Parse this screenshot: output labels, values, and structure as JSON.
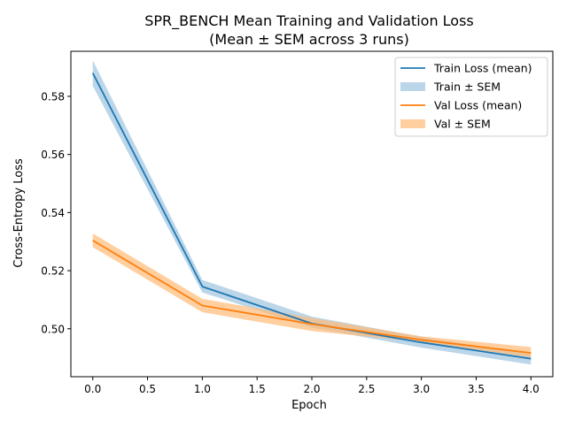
{
  "chart_data": {
    "type": "line",
    "title": "SPR_BENCH Mean Training and Validation Loss",
    "subtitle": "(Mean ± SEM across 3 runs)",
    "xlabel": "Epoch",
    "ylabel": "Cross-Entropy Loss",
    "xlim": [
      -0.2,
      4.2
    ],
    "ylim": [
      0.4835,
      0.5955
    ],
    "xticks": [
      0.0,
      0.5,
      1.0,
      1.5,
      2.0,
      2.5,
      3.0,
      3.5,
      4.0
    ],
    "xtick_labels": [
      "0.0",
      "0.5",
      "1.0",
      "1.5",
      "2.0",
      "2.5",
      "3.0",
      "3.5",
      "4.0"
    ],
    "yticks": [
      0.5,
      0.52,
      0.54,
      0.56,
      0.58
    ],
    "ytick_labels": [
      "0.50",
      "0.52",
      "0.54",
      "0.56",
      "0.58"
    ],
    "x": [
      0,
      1,
      2,
      3,
      4
    ],
    "grid": false,
    "legend_position": "top-right",
    "series": [
      {
        "name": "Train Loss (mean)",
        "band_name": "Train ± SEM",
        "color": "#1f77b4",
        "values": [
          0.588,
          0.5145,
          0.5018,
          0.4953,
          0.4897
        ],
        "lower": [
          0.5836,
          0.5125,
          0.5004,
          0.4935,
          0.4877
        ],
        "upper": [
          0.5924,
          0.5168,
          0.5042,
          0.4972,
          0.4913
        ]
      },
      {
        "name": "Val Loss (mean)",
        "band_name": "Val ± SEM",
        "color": "#ff7f0e",
        "band_color": "#ffbb78",
        "values": [
          0.5304,
          0.508,
          0.5016,
          0.4962,
          0.4917
        ],
        "lower": [
          0.5281,
          0.5057,
          0.4992,
          0.4955,
          0.4901
        ],
        "upper": [
          0.5328,
          0.5103,
          0.5037,
          0.4974,
          0.4937
        ]
      }
    ]
  }
}
